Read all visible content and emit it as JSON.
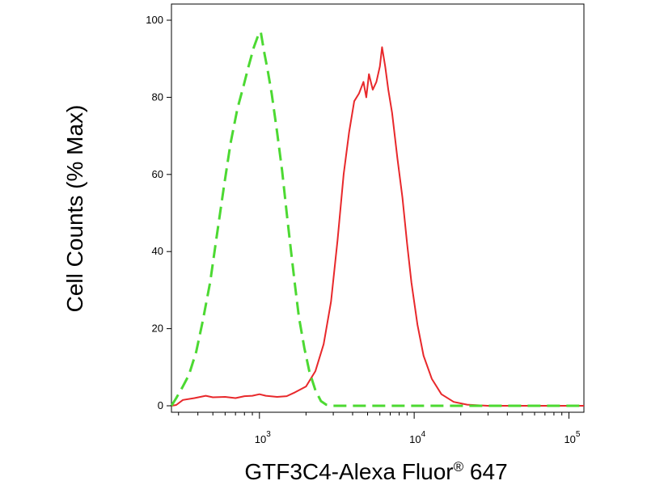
{
  "chart_data": {
    "type": "line",
    "ylabel": "Cell Counts (% Max)",
    "xlabel": {
      "main": "GTF3C4-Alexa Fluor",
      "sup": "®",
      "suffix": " 647"
    },
    "x_scale": "log",
    "xlim": [
      270,
      125000
    ],
    "ylim": [
      0,
      105
    ],
    "y_ticks": [
      0,
      20,
      40,
      60,
      80,
      100
    ],
    "x_ticks": [
      {
        "value": 1000,
        "base": "10",
        "exp": "3"
      },
      {
        "value": 10000,
        "base": "10",
        "exp": "4"
      },
      {
        "value": 100000,
        "base": "10",
        "exp": "5"
      }
    ],
    "grid": false,
    "series": [
      {
        "color": "#e8282b",
        "dash": "solid",
        "points": [
          [
            270,
            0
          ],
          [
            290,
            0.2
          ],
          [
            320,
            1.5
          ],
          [
            380,
            2
          ],
          [
            450,
            2.6
          ],
          [
            500,
            2.2
          ],
          [
            600,
            2.3
          ],
          [
            700,
            2
          ],
          [
            800,
            2.5
          ],
          [
            900,
            2.6
          ],
          [
            1000,
            3
          ],
          [
            1100,
            2.6
          ],
          [
            1300,
            2.3
          ],
          [
            1500,
            2.5
          ],
          [
            1700,
            3.5
          ],
          [
            2000,
            5
          ],
          [
            2300,
            9
          ],
          [
            2600,
            16
          ],
          [
            2900,
            27
          ],
          [
            3200,
            43
          ],
          [
            3500,
            60
          ],
          [
            3800,
            71
          ],
          [
            4100,
            79
          ],
          [
            4400,
            81
          ],
          [
            4700,
            84
          ],
          [
            4900,
            80
          ],
          [
            5100,
            86
          ],
          [
            5400,
            82
          ],
          [
            5700,
            84
          ],
          [
            6000,
            88
          ],
          [
            6200,
            93
          ],
          [
            6500,
            88
          ],
          [
            6800,
            82
          ],
          [
            7200,
            76
          ],
          [
            7800,
            64
          ],
          [
            8400,
            54
          ],
          [
            9000,
            42
          ],
          [
            9600,
            32
          ],
          [
            10500,
            21
          ],
          [
            11500,
            13
          ],
          [
            13000,
            7
          ],
          [
            15000,
            3
          ],
          [
            18000,
            1
          ],
          [
            22000,
            0.3
          ],
          [
            30000,
            0
          ],
          [
            125000,
            0
          ]
        ]
      },
      {
        "color": "#4cd932",
        "dash": "dashed",
        "points": [
          [
            270,
            0
          ],
          [
            290,
            2
          ],
          [
            320,
            5
          ],
          [
            350,
            8
          ],
          [
            390,
            14
          ],
          [
            430,
            22
          ],
          [
            480,
            32
          ],
          [
            530,
            44
          ],
          [
            590,
            57
          ],
          [
            650,
            68
          ],
          [
            720,
            77
          ],
          [
            790,
            83
          ],
          [
            850,
            88
          ],
          [
            920,
            93
          ],
          [
            980,
            96
          ],
          [
            1020,
            97
          ],
          [
            1070,
            92
          ],
          [
            1130,
            87
          ],
          [
            1200,
            81
          ],
          [
            1300,
            71
          ],
          [
            1400,
            61
          ],
          [
            1500,
            50
          ],
          [
            1600,
            40
          ],
          [
            1700,
            31
          ],
          [
            1800,
            23
          ],
          [
            1950,
            15
          ],
          [
            2100,
            9
          ],
          [
            2300,
            4
          ],
          [
            2500,
            1.2
          ],
          [
            2700,
            0.3
          ],
          [
            3000,
            0
          ],
          [
            4000,
            0
          ],
          [
            10000,
            0
          ],
          [
            20000,
            0
          ],
          [
            125000,
            0
          ]
        ]
      }
    ]
  }
}
